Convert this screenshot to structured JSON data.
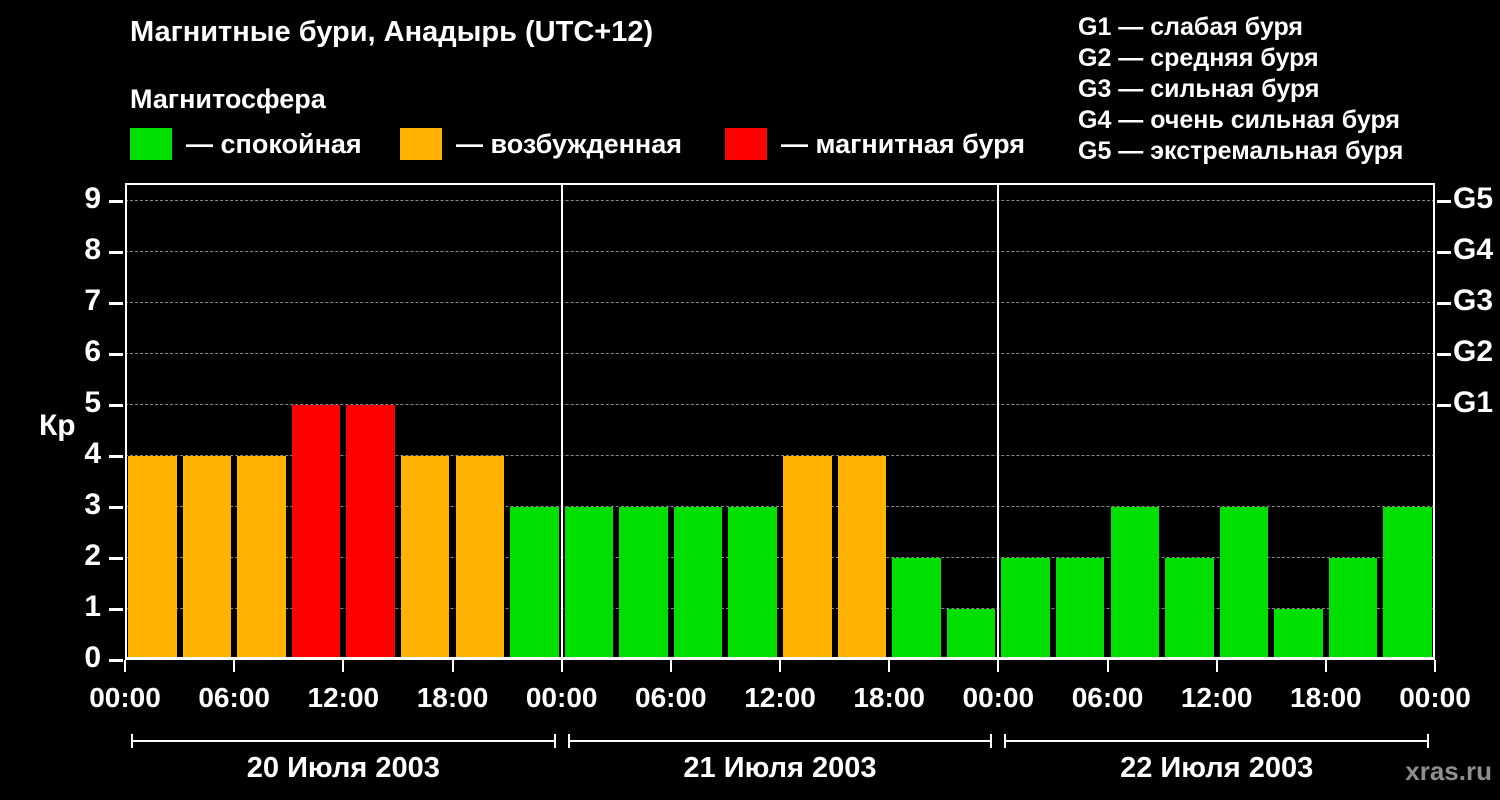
{
  "title": "Магнитные бури, Анадырь (UTC+12)",
  "subtitle": "Магнитосфера",
  "legend": {
    "items": [
      {
        "label": "— спокойная",
        "color": "#00e000"
      },
      {
        "label": "— возбужденная",
        "color": "#ffb200"
      },
      {
        "label": "— магнитная буря",
        "color": "#ff0000"
      }
    ]
  },
  "g_legend": [
    "G1 — слабая буря",
    "G2 — средняя буря",
    "G3 — сильная буря",
    "G4 — очень сильная буря",
    "G5 — экстремальная буря"
  ],
  "watermark": "xras.ru",
  "chart_data": {
    "type": "bar",
    "ylabel": "Кр",
    "ylim": [
      0,
      9
    ],
    "yticks": [
      0,
      1,
      2,
      3,
      4,
      5,
      6,
      7,
      8,
      9
    ],
    "right_scale": [
      {
        "value": 5,
        "label": "G1"
      },
      {
        "value": 6,
        "label": "G2"
      },
      {
        "value": 7,
        "label": "G3"
      },
      {
        "value": 8,
        "label": "G4"
      },
      {
        "value": 9,
        "label": "G5"
      }
    ],
    "bar_interval_hours": 3,
    "time_ticks": [
      "00:00",
      "06:00",
      "12:00",
      "18:00"
    ],
    "end_tick": "00:00",
    "days": [
      {
        "date": "20 Июля 2003",
        "values": [
          4,
          4,
          4,
          5,
          5,
          4,
          4,
          3
        ]
      },
      {
        "date": "21 Июля 2003",
        "values": [
          3,
          3,
          3,
          3,
          4,
          4,
          2,
          1
        ]
      },
      {
        "date": "22 Июля 2003",
        "values": [
          2,
          2,
          3,
          2,
          3,
          1,
          2,
          3
        ]
      }
    ],
    "colors": {
      "quiet": "#00e000",
      "excited": "#ffb200",
      "storm": "#ff0000"
    },
    "thresholds": {
      "excited_min": 4,
      "storm_min": 5
    },
    "grid": {
      "on": true,
      "color": "#8a8a8a",
      "style": "dashed"
    }
  }
}
